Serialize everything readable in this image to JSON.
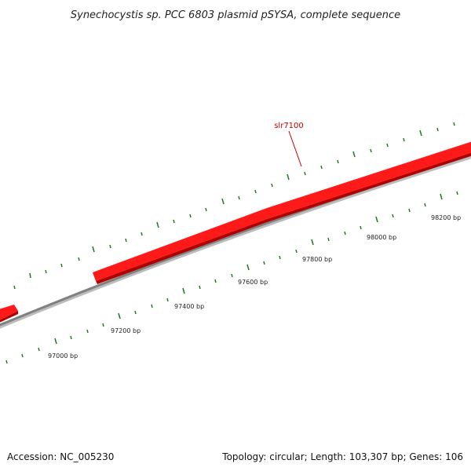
{
  "title": "Synechocystis sp. PCC 6803 plasmid pSYSA, complete sequence",
  "footer": {
    "accession": "Accession: NC_005230",
    "summary": "Topology: circular; Length: 103,307 bp; Genes: 106"
  },
  "genes": [
    {
      "name": "slr7100",
      "label": "slr7100"
    },
    {
      "name": "left-gene",
      "label": ""
    }
  ],
  "ticks": [
    {
      "label": "97000 bp"
    },
    {
      "label": "97200 bp"
    },
    {
      "label": "97400 bp"
    },
    {
      "label": "97600 bp"
    },
    {
      "label": "97800 bp"
    },
    {
      "label": "98000 bp"
    },
    {
      "label": "98200 bp"
    }
  ],
  "colors": {
    "gene": "#ff1a1a",
    "gene_shade": "#b00000",
    "backbone": "#808080",
    "tick": "#1e7a1e",
    "gene_label": "#cc0000"
  }
}
